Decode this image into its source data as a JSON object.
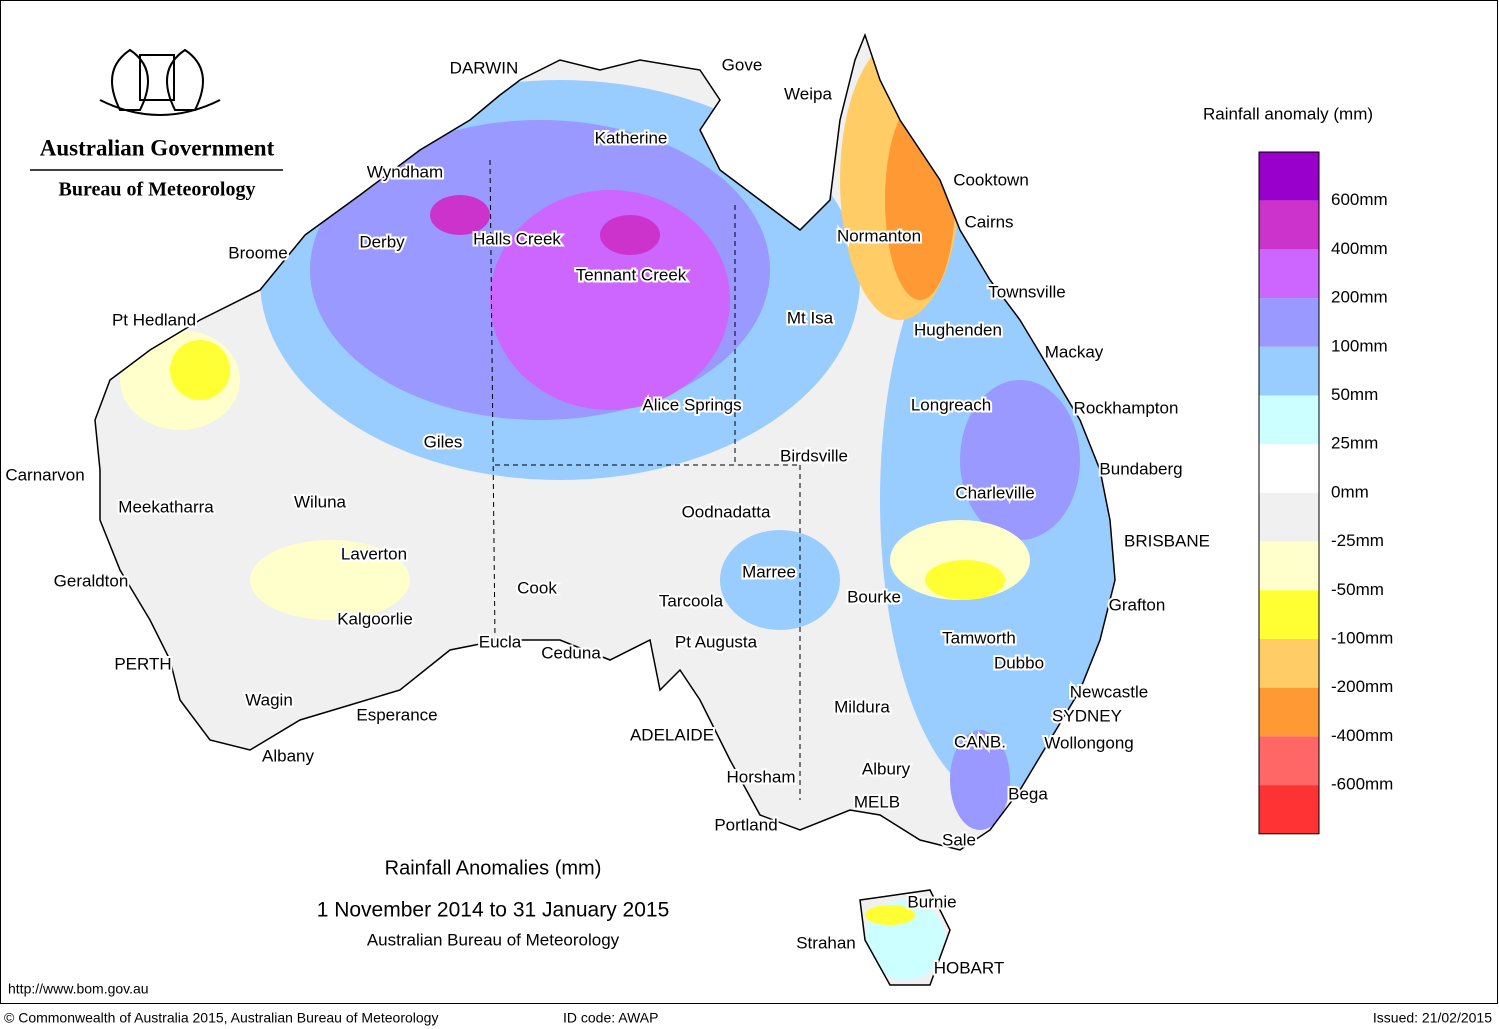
{
  "header": {
    "government": "Australian Government",
    "bureau": "Bureau of Meteorology"
  },
  "legend": {
    "title": "Rainfall anomaly (mm)",
    "colors": [
      "#9900cc",
      "#cc33cc",
      "#cc66ff",
      "#9999ff",
      "#99ccff",
      "#ccffff",
      "#ffffff",
      "#f0f0f0",
      "#ffffcc",
      "#ffff33",
      "#ffcc66",
      "#ff9933",
      "#ff6666",
      "#ff3333"
    ],
    "labels": [
      "600mm",
      "400mm",
      "200mm",
      "100mm",
      "50mm",
      "25mm",
      "0mm",
      "-25mm",
      "-50mm",
      "-100mm",
      "-200mm",
      "-400mm",
      "-600mm"
    ]
  },
  "places": [
    "DARWIN",
    "Gove",
    "Weipa",
    "Katherine",
    "Wyndham",
    "Cooktown",
    "Cairns",
    "Derby",
    "Halls Creek",
    "Broome",
    "Normanton",
    "Tennant Creek",
    "Townsville",
    "Pt Hedland",
    "Mt Isa",
    "Hughenden",
    "Mackay",
    "Alice Springs",
    "Longreach",
    "Rockhampton",
    "Giles",
    "Birdsville",
    "Bundaberg",
    "Carnarvon",
    "Charleville",
    "Meekatharra",
    "Wiluna",
    "Oodnadatta",
    "BRISBANE",
    "Laverton",
    "Marree",
    "Geraldton",
    "Cook",
    "Bourke",
    "Grafton",
    "Tarcoola",
    "Kalgoorlie",
    "Tamworth",
    "Eucla",
    "Pt Augusta",
    "Ceduna",
    "PERTH",
    "Dubbo",
    "Newcastle",
    "Wagin",
    "Mildura",
    "Esperance",
    "SYDNEY",
    "ADELAIDE",
    "CANB.",
    "Wollongong",
    "Albany",
    "Albury",
    "Horsham",
    "Bega",
    "MELB",
    "Portland",
    "Sale",
    "Burnie",
    "Strahan",
    "HOBART"
  ],
  "title": {
    "line1": "Rainfall Anomalies (mm)",
    "line2": "1 November 2014 to 31 January 2015",
    "line3": "Australian Bureau of Meteorology"
  },
  "footer": {
    "url": "http://www.bom.gov.au",
    "copyright": "© Commonwealth of Australia 2015, Australian Bureau of Meteorology",
    "id_code": "ID code: AWAP",
    "issued": "Issued: 21/02/2015"
  }
}
